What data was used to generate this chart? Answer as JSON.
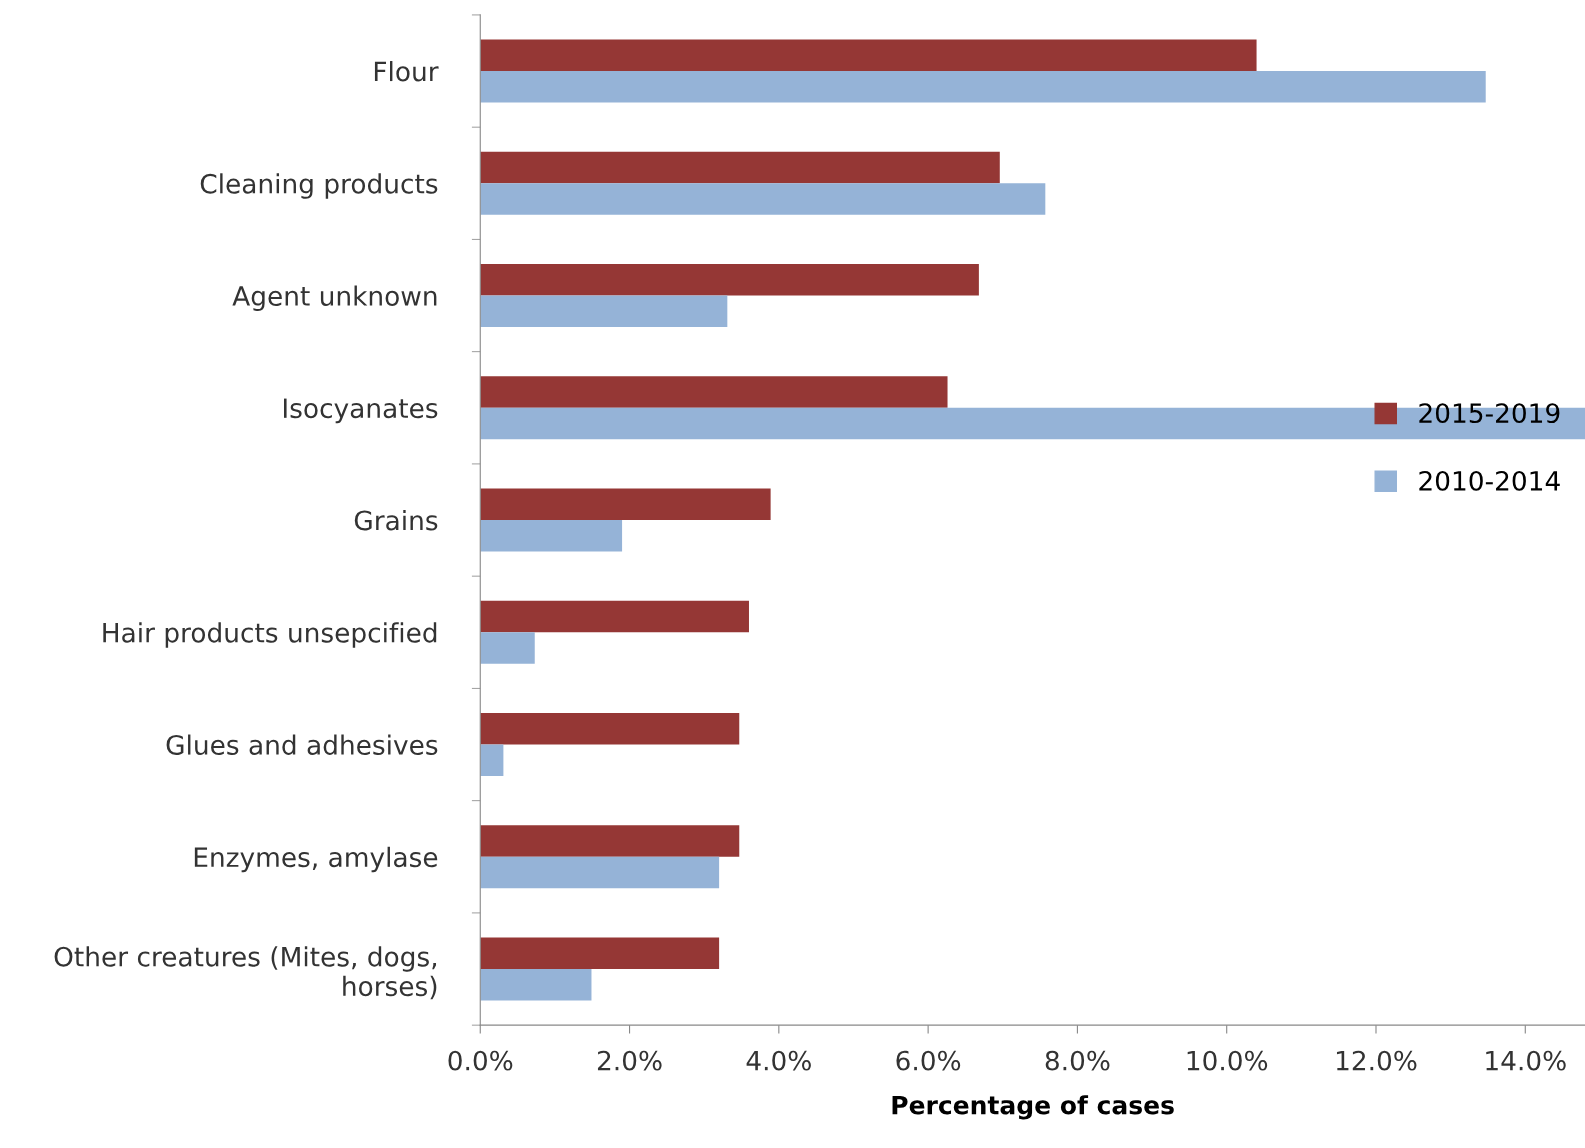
{
  "chart_data": {
    "type": "bar",
    "orientation": "horizontal",
    "xlabel": "Percentage of cases",
    "categories": [
      "Flour",
      "Cleaning products",
      "Agent unknown",
      "Isocyanates",
      "Grains",
      "Hair products unsepcified",
      "Glues and adhesives",
      "Enzymes, amylase",
      "Other creatures (Mites, dogs,\nhorses)"
    ],
    "series": [
      {
        "name": "2015-2019",
        "color": "#953735",
        "values": [
          10.4,
          6.96,
          6.68,
          6.26,
          3.89,
          3.6,
          3.47,
          3.47,
          3.2
        ]
      },
      {
        "name": "2010-2014",
        "color": "#95b3d7",
        "values": [
          13.47,
          7.57,
          3.31,
          14.8,
          1.9,
          0.73,
          0.31,
          3.2,
          1.49
        ]
      }
    ],
    "xlim": [
      0,
      14.8
    ],
    "xticks": [
      {
        "value": 0,
        "label": "0.0%"
      },
      {
        "value": 2,
        "label": "2.0%"
      },
      {
        "value": 4,
        "label": "4.0%"
      },
      {
        "value": 6,
        "label": "6.0%"
      },
      {
        "value": 8,
        "label": "8.0%"
      },
      {
        "value": 10,
        "label": "10.0%"
      },
      {
        "value": 12,
        "label": "12.0%"
      },
      {
        "value": 14,
        "label": "14.0%"
      }
    ],
    "legend": "right",
    "grid": false
  }
}
